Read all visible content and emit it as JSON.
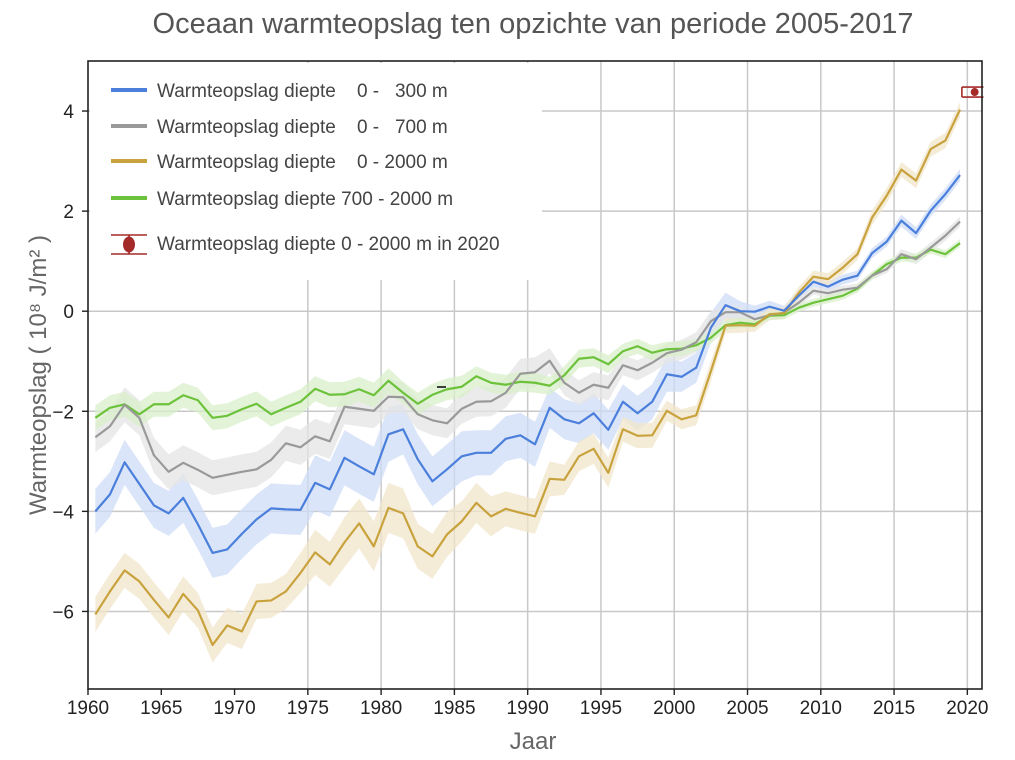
{
  "chart_data": {
    "type": "line",
    "title": "Oceaan warmteopslag ten opzichte van periode 2005-2017",
    "xlabel": "Jaar",
    "ylabel": "Warmteopslag ( 10⁸ J/m² )",
    "xlim": [
      1960,
      2021
    ],
    "ylim": [
      -7.55,
      5.0
    ],
    "xticks": [
      1960,
      1965,
      1970,
      1975,
      1980,
      1985,
      1990,
      1995,
      2000,
      2005,
      2010,
      2015,
      2020
    ],
    "xtick_labels": [
      "1960",
      "1965",
      "1970",
      "1975",
      "1980",
      "1985",
      "1990",
      "1995",
      "2000",
      "2005",
      "2010",
      "2015",
      "2020"
    ],
    "yticks": [
      -6,
      -4,
      -2,
      0,
      2,
      4
    ],
    "ytick_labels": [
      "−6",
      "−4",
      "−2",
      "0",
      "2",
      "4"
    ],
    "grid": true,
    "legend_position": "top-left",
    "x": [
      1960.5,
      1961.5,
      1962.5,
      1963.5,
      1964.5,
      1965.5,
      1966.5,
      1967.5,
      1968.5,
      1969.5,
      1970.5,
      1971.5,
      1972.5,
      1973.5,
      1974.5,
      1975.5,
      1976.5,
      1977.5,
      1978.5,
      1979.5,
      1980.5,
      1981.5,
      1982.5,
      1983.5,
      1984.5,
      1985.5,
      1986.5,
      1987.5,
      1988.5,
      1989.5,
      1990.5,
      1991.5,
      1992.5,
      1993.5,
      1994.5,
      1995.5,
      1996.5,
      1997.5,
      1998.5,
      1999.5,
      2000.5,
      2001.5,
      2002.5,
      2003.5,
      2004.5,
      2005.5,
      2006.5,
      2007.5,
      2008.5,
      2009.5,
      2010.5,
      2011.5,
      2012.5,
      2013.5,
      2014.5,
      2015.5,
      2016.5,
      2017.5,
      2018.5,
      2019.5
    ],
    "series": [
      {
        "name": "Warmteopslag diepte    0 -   300 m",
        "color": "#4a7fdc",
        "band_color": "#cfdcf7",
        "values": [
          -4.0,
          -3.66,
          -3.02,
          -3.45,
          -3.88,
          -4.04,
          -3.73,
          -4.26,
          -4.83,
          -4.76,
          -4.45,
          -4.16,
          -3.94,
          -3.96,
          -3.97,
          -3.43,
          -3.56,
          -2.93,
          -3.1,
          -3.26,
          -2.46,
          -2.36,
          -2.96,
          -3.4,
          -3.16,
          -2.9,
          -2.83,
          -2.83,
          -2.55,
          -2.48,
          -2.66,
          -1.93,
          -2.16,
          -2.24,
          -2.04,
          -2.37,
          -1.81,
          -2.04,
          -1.81,
          -1.26,
          -1.31,
          -1.13,
          -0.33,
          0.12,
          0.0,
          -0.01,
          0.09,
          0.01,
          0.31,
          0.59,
          0.49,
          0.63,
          0.71,
          1.16,
          1.39,
          1.81,
          1.56,
          2.01,
          2.34,
          2.72
        ],
        "uncertainty": [
          0.45,
          0.45,
          0.45,
          0.45,
          0.45,
          0.45,
          0.5,
          0.5,
          0.5,
          0.5,
          0.5,
          0.5,
          0.5,
          0.5,
          0.5,
          0.55,
          0.55,
          0.55,
          0.55,
          0.55,
          0.55,
          0.5,
          0.5,
          0.5,
          0.5,
          0.5,
          0.45,
          0.45,
          0.45,
          0.45,
          0.45,
          0.4,
          0.4,
          0.4,
          0.4,
          0.4,
          0.35,
          0.35,
          0.35,
          0.35,
          0.3,
          0.3,
          0.3,
          0.25,
          0.2,
          0.12,
          0.12,
          0.1,
          0.1,
          0.1,
          0.1,
          0.1,
          0.1,
          0.1,
          0.1,
          0.12,
          0.12,
          0.12,
          0.12,
          0.12
        ]
      },
      {
        "name": "Warmteopslag diepte    0 -   700 m",
        "color": "#999999",
        "band_color": "#e4e4e4",
        "values": [
          -2.52,
          -2.3,
          -1.87,
          -2.13,
          -2.88,
          -3.21,
          -3.03,
          -3.17,
          -3.33,
          -3.27,
          -3.21,
          -3.16,
          -2.97,
          -2.64,
          -2.72,
          -2.5,
          -2.6,
          -1.91,
          -1.95,
          -1.99,
          -1.71,
          -1.72,
          -2.06,
          -2.18,
          -2.24,
          -1.95,
          -1.81,
          -1.8,
          -1.63,
          -1.25,
          -1.22,
          -0.99,
          -1.43,
          -1.63,
          -1.47,
          -1.53,
          -1.08,
          -1.18,
          -1.03,
          -0.84,
          -0.77,
          -0.62,
          -0.2,
          -0.02,
          -0.02,
          -0.16,
          -0.08,
          -0.03,
          0.17,
          0.41,
          0.36,
          0.43,
          0.47,
          0.71,
          0.84,
          1.14,
          1.04,
          1.27,
          1.51,
          1.79
        ],
        "uncertainty": [
          0.3,
          0.3,
          0.35,
          0.35,
          0.35,
          0.35,
          0.35,
          0.35,
          0.35,
          0.35,
          0.35,
          0.35,
          0.35,
          0.35,
          0.35,
          0.35,
          0.35,
          0.35,
          0.35,
          0.35,
          0.35,
          0.3,
          0.3,
          0.3,
          0.3,
          0.3,
          0.3,
          0.3,
          0.3,
          0.3,
          0.3,
          0.25,
          0.25,
          0.25,
          0.25,
          0.25,
          0.2,
          0.2,
          0.2,
          0.2,
          0.2,
          0.2,
          0.2,
          0.15,
          0.12,
          0.1,
          0.1,
          0.1,
          0.08,
          0.08,
          0.08,
          0.08,
          0.08,
          0.08,
          0.08,
          0.1,
          0.1,
          0.1,
          0.1,
          0.1
        ]
      },
      {
        "name": "Warmteopslag diepte    0 - 2000 m",
        "color": "#c8a23c",
        "band_color": "#f1e6cb",
        "values": [
          -6.06,
          -5.6,
          -5.18,
          -5.4,
          -5.77,
          -6.12,
          -5.65,
          -5.98,
          -6.67,
          -6.28,
          -6.4,
          -5.8,
          -5.78,
          -5.6,
          -5.23,
          -4.82,
          -5.06,
          -4.62,
          -4.24,
          -4.7,
          -3.93,
          -4.04,
          -4.7,
          -4.9,
          -4.46,
          -4.2,
          -3.83,
          -4.1,
          -3.95,
          -4.03,
          -4.1,
          -3.35,
          -3.37,
          -2.9,
          -2.75,
          -3.23,
          -2.36,
          -2.49,
          -2.48,
          -1.99,
          -2.16,
          -2.08,
          -1.2,
          -0.29,
          -0.28,
          -0.29,
          -0.06,
          -0.04,
          0.37,
          0.69,
          0.64,
          0.87,
          1.14,
          1.87,
          2.31,
          2.83,
          2.61,
          3.24,
          3.41,
          4.03
        ],
        "uncertainty": [
          0.35,
          0.35,
          0.35,
          0.35,
          0.35,
          0.35,
          0.35,
          0.35,
          0.35,
          0.35,
          0.35,
          0.35,
          0.35,
          0.35,
          0.4,
          0.45,
          0.45,
          0.5,
          0.5,
          0.5,
          0.5,
          0.5,
          0.45,
          0.45,
          0.45,
          0.4,
          0.4,
          0.4,
          0.35,
          0.35,
          0.35,
          0.35,
          0.3,
          0.3,
          0.3,
          0.3,
          0.25,
          0.25,
          0.25,
          0.2,
          0.2,
          0.2,
          0.2,
          0.15,
          0.15,
          0.12,
          0.12,
          0.12,
          0.12,
          0.12,
          0.12,
          0.12,
          0.12,
          0.15,
          0.15,
          0.15,
          0.15,
          0.15,
          0.15,
          0.15
        ]
      },
      {
        "name": "Warmteopslag diepte 700 - 2000 m",
        "color": "#6cc23a",
        "band_color": "#d9efcb",
        "values": [
          -2.13,
          -1.93,
          -1.86,
          -2.06,
          -1.86,
          -1.86,
          -1.68,
          -1.78,
          -2.13,
          -2.09,
          -1.96,
          -1.85,
          -2.06,
          -1.93,
          -1.81,
          -1.55,
          -1.67,
          -1.66,
          -1.56,
          -1.68,
          -1.39,
          -1.63,
          -1.85,
          -1.67,
          -1.56,
          -1.51,
          -1.3,
          -1.43,
          -1.47,
          -1.41,
          -1.43,
          -1.49,
          -1.28,
          -0.95,
          -0.92,
          -1.06,
          -0.8,
          -0.7,
          -0.83,
          -0.76,
          -0.75,
          -0.68,
          -0.53,
          -0.28,
          -0.23,
          -0.26,
          -0.09,
          -0.08,
          0.07,
          0.17,
          0.24,
          0.31,
          0.45,
          0.71,
          0.94,
          1.07,
          1.07,
          1.23,
          1.14,
          1.36
        ],
        "uncertainty": [
          0.25,
          0.25,
          0.25,
          0.25,
          0.25,
          0.25,
          0.25,
          0.25,
          0.25,
          0.25,
          0.25,
          0.25,
          0.25,
          0.25,
          0.25,
          0.25,
          0.25,
          0.25,
          0.25,
          0.25,
          0.25,
          0.22,
          0.22,
          0.22,
          0.22,
          0.22,
          0.2,
          0.2,
          0.2,
          0.2,
          0.2,
          0.18,
          0.18,
          0.18,
          0.18,
          0.18,
          0.15,
          0.15,
          0.15,
          0.15,
          0.15,
          0.12,
          0.12,
          0.1,
          0.1,
          0.08,
          0.08,
          0.08,
          0.08,
          0.08,
          0.08,
          0.08,
          0.08,
          0.08,
          0.08,
          0.08,
          0.08,
          0.08,
          0.08,
          0.08
        ]
      }
    ],
    "point_2020": {
      "name": "Warmteopslag diepte 0 - 2000 m in 2020",
      "color": "#a52a2a",
      "x": 2020.5,
      "y": 4.38,
      "xerr": 0.6,
      "yerr": 0.1
    },
    "annotations": []
  }
}
